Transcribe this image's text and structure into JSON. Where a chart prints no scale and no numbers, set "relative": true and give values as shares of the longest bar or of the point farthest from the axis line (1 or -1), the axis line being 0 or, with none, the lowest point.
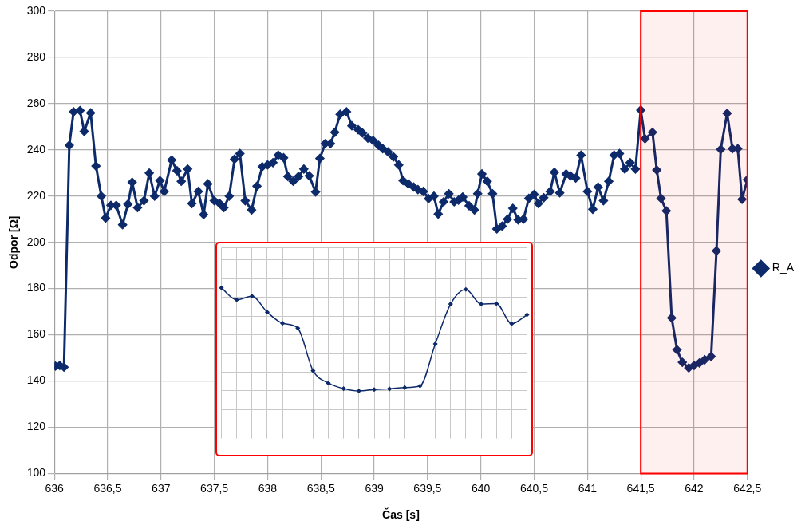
{
  "chart_data": [
    {
      "type": "line",
      "xlabel": "Čas [s]",
      "ylabel": "Odpor [Ω]",
      "xlim": [
        636,
        642.5
      ],
      "ylim": [
        100,
        300
      ],
      "xticks": [
        636,
        {
          "value": 636.5,
          "label": "636,5"
        },
        637,
        {
          "value": 637.5,
          "label": "637,5"
        },
        638,
        {
          "value": 638.5,
          "label": "638,5"
        },
        639,
        {
          "value": 639.5,
          "label": "639,5"
        },
        640,
        {
          "value": 640.5,
          "label": "640,5"
        },
        641,
        {
          "value": 641.5,
          "label": "641,5"
        },
        642,
        {
          "value": 642.5,
          "label": "642,5"
        }
      ],
      "yticks": [
        100,
        120,
        140,
        160,
        180,
        200,
        220,
        240,
        260,
        280,
        300
      ],
      "grid": true,
      "legend": "right",
      "marker": "diamond",
      "line_style": "solid",
      "bands": [
        {
          "axis": "x",
          "from": 641.5,
          "to": 642.5,
          "color": "#ff0000"
        }
      ],
      "series": [
        {
          "name": "R_A",
          "color": "#0d2a6a",
          "x": [
            636.01,
            636.05,
            636.09,
            636.14,
            636.18,
            636.24,
            636.28,
            636.34,
            636.39,
            636.44,
            636.48,
            636.53,
            636.58,
            636.64,
            636.69,
            636.73,
            636.78,
            636.84,
            636.89,
            636.94,
            636.99,
            637.03,
            637.1,
            637.15,
            637.19,
            637.25,
            637.29,
            637.35,
            637.4,
            637.44,
            637.5,
            637.55,
            637.59,
            637.64,
            637.69,
            637.74,
            637.79,
            637.85,
            637.9,
            637.95,
            638,
            638.05,
            638.1,
            638.15,
            638.19,
            638.24,
            638.29,
            638.34,
            638.39,
            638.45,
            638.49,
            638.54,
            638.59,
            638.63,
            638.68,
            638.74,
            638.79,
            638.85,
            638.89,
            638.94,
            638.99,
            639.04,
            639.08,
            639.13,
            639.18,
            639.23,
            639.27,
            639.32,
            639.37,
            639.41,
            639.46,
            639.51,
            639.56,
            639.6,
            639.65,
            639.7,
            639.75,
            639.79,
            639.83,
            639.89,
            639.94,
            639.97,
            640.01,
            640.06,
            640.11,
            640.15,
            640.2,
            640.25,
            640.3,
            640.35,
            640.4,
            640.45,
            640.5,
            640.54,
            640.59,
            640.65,
            640.69,
            640.74,
            640.8,
            640.84,
            640.89,
            640.94,
            641,
            641.05,
            641.1,
            641.15,
            641.2,
            641.25,
            641.3,
            641.35,
            641.4,
            641.45,
            641.5,
            641.54,
            641.61,
            641.65,
            641.69,
            641.74,
            641.79,
            641.84,
            641.89,
            641.95,
            642,
            642.05,
            642.1,
            642.16,
            642.21,
            642.25,
            642.31,
            642.36,
            642.41,
            642.45,
            642.5
          ],
          "values": [
            146.4,
            146.7,
            146,
            242,
            256.5,
            257,
            248,
            256,
            233,
            220,
            210.5,
            216,
            216,
            207.6,
            216.5,
            226,
            215,
            218,
            230,
            220,
            226.7,
            222,
            235.6,
            231,
            226.4,
            231.7,
            216.8,
            222,
            212,
            225.3,
            218,
            216.8,
            215,
            220,
            236,
            238.4,
            218,
            214,
            224.3,
            232.7,
            233.5,
            234.5,
            237.7,
            236.6,
            228.5,
            226.4,
            228.5,
            231.7,
            228.8,
            221.8,
            236.3,
            242.7,
            242.7,
            247.6,
            255.4,
            256.5,
            250.4,
            248.7,
            247.3,
            245.1,
            244,
            242,
            240.5,
            239.1,
            237,
            233.5,
            226.7,
            225.3,
            223.9,
            222.8,
            222,
            218.9,
            220,
            212.2,
            217.5,
            221,
            217.5,
            218.2,
            219.6,
            215.8,
            214,
            221,
            229.6,
            226.4,
            221,
            205.8,
            207,
            210,
            214.7,
            209.7,
            210,
            219,
            220.7,
            216.8,
            219.3,
            222,
            230.3,
            221.4,
            229.6,
            228.8,
            227.8,
            237.7,
            222,
            214.3,
            223.9,
            218,
            226.4,
            237.7,
            238.4,
            231.7,
            234.5,
            231.7,
            257.2,
            244.8,
            247.6,
            231.3,
            219,
            213.6,
            167.3,
            153.5,
            148.1,
            145.7,
            146.7,
            147.8,
            149.2,
            150.6,
            196.3,
            240.2,
            255.8,
            240.5,
            240.5,
            218.6,
            227.1
          ]
        }
      ]
    },
    {
      "type": "line",
      "relative": true,
      "grid": true,
      "marker": "diamond",
      "line_style": "solid",
      "categories": [
        null,
        null,
        null,
        null,
        null,
        null,
        null,
        null,
        null,
        null,
        null,
        null,
        null,
        null,
        null,
        null,
        null,
        null,
        null,
        null,
        null
      ],
      "series": [
        {
          "color": "#0d2a6a",
          "values": [
            1,
            0.885,
            0.92,
            0.765,
            0.657,
            0.609,
            0.196,
            0.076,
            0.022,
            0,
            0.013,
            0.02,
            0.033,
            0.048,
            0.457,
            0.843,
            0.985,
            0.843,
            0.848,
            0.652,
            0.739
          ]
        }
      ]
    }
  ]
}
